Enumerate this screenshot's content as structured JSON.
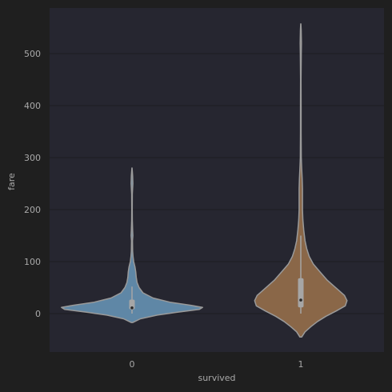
{
  "chart_data": {
    "type": "violin",
    "xlabel": "survived",
    "ylabel": "fare",
    "categories": [
      "0",
      "1"
    ],
    "yticks": [
      0,
      100,
      200,
      300,
      400,
      500
    ],
    "ylim": [
      -75,
      580
    ],
    "grid": true,
    "colors": {
      "background": "#1f1f1f",
      "plot_area": "#262630",
      "grid": "#1c1c22",
      "outline": "#9a9a9a",
      "box": "#a6a6a6",
      "median": "#2a2a2a",
      "text": "#a9a9a9"
    },
    "series": [
      {
        "category": "0",
        "color": "#5f87a6",
        "min": -17,
        "max": 280,
        "profile": [
          [
            -17,
            0.01
          ],
          [
            -10,
            0.1
          ],
          [
            -3,
            0.3
          ],
          [
            3,
            0.55
          ],
          [
            8,
            0.8
          ],
          [
            12,
            0.84
          ],
          [
            16,
            0.7
          ],
          [
            22,
            0.45
          ],
          [
            30,
            0.25
          ],
          [
            40,
            0.13
          ],
          [
            50,
            0.085
          ],
          [
            60,
            0.06
          ],
          [
            70,
            0.05
          ],
          [
            80,
            0.045
          ],
          [
            90,
            0.035
          ],
          [
            100,
            0.02
          ],
          [
            110,
            0.012
          ],
          [
            120,
            0.008
          ],
          [
            140,
            0.006
          ],
          [
            150,
            0.01
          ],
          [
            160,
            0.008
          ],
          [
            180,
            0.004
          ],
          [
            200,
            0.003
          ],
          [
            230,
            0.004
          ],
          [
            250,
            0.01
          ],
          [
            265,
            0.008
          ],
          [
            280,
            0.001
          ]
        ],
        "box": {
          "q1": 8,
          "q3": 27
        },
        "whisker": [
          0,
          52
        ],
        "median": 11
      },
      {
        "category": "1",
        "color": "#8a6748",
        "min": -45,
        "max": 557,
        "profile": [
          [
            -45,
            0.01
          ],
          [
            -35,
            0.05
          ],
          [
            -25,
            0.12
          ],
          [
            -15,
            0.2
          ],
          [
            -5,
            0.3
          ],
          [
            5,
            0.42
          ],
          [
            15,
            0.53
          ],
          [
            25,
            0.55
          ],
          [
            35,
            0.52
          ],
          [
            45,
            0.45
          ],
          [
            55,
            0.38
          ],
          [
            65,
            0.31
          ],
          [
            80,
            0.23
          ],
          [
            95,
            0.15
          ],
          [
            110,
            0.1
          ],
          [
            125,
            0.07
          ],
          [
            140,
            0.05
          ],
          [
            160,
            0.035
          ],
          [
            180,
            0.025
          ],
          [
            200,
            0.02
          ],
          [
            220,
            0.02
          ],
          [
            240,
            0.02
          ],
          [
            260,
            0.016
          ],
          [
            280,
            0.01
          ],
          [
            300,
            0.006
          ],
          [
            350,
            0.004
          ],
          [
            400,
            0.004
          ],
          [
            450,
            0.003
          ],
          [
            500,
            0.006
          ],
          [
            520,
            0.008
          ],
          [
            545,
            0.005
          ],
          [
            557,
            0.001
          ]
        ],
        "box": {
          "q1": 12,
          "q3": 68
        },
        "whisker": [
          0,
          150
        ],
        "median": 26
      }
    ]
  }
}
